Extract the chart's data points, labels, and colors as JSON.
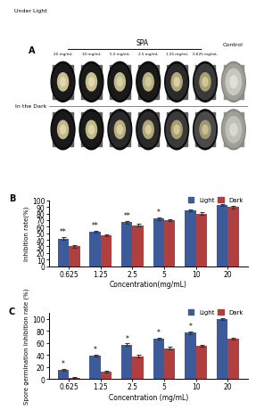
{
  "panel_B": {
    "concentrations": [
      "0.625",
      "1.25",
      "2.5",
      "5",
      "10",
      "20"
    ],
    "light_values": [
      42,
      52,
      67,
      72,
      85,
      93
    ],
    "dark_values": [
      30,
      47,
      62,
      70,
      80,
      90
    ],
    "light_err": [
      2.0,
      1.5,
      2.0,
      1.5,
      1.5,
      1.5
    ],
    "dark_err": [
      1.5,
      1.5,
      2.0,
      1.5,
      1.5,
      2.0
    ],
    "ylabel": "Inhibition rate(%)",
    "xlabel": "Concentration(mg/mL)",
    "ylim": [
      0,
      100
    ],
    "yticks": [
      0,
      10,
      20,
      30,
      40,
      50,
      60,
      70,
      80,
      90,
      100
    ],
    "significance_light": [
      "**",
      "**",
      "**",
      "*",
      "*",
      ""
    ],
    "label": "B"
  },
  "panel_C": {
    "concentrations": [
      "0.625",
      "1.25",
      "2.5",
      "5",
      "10",
      "20"
    ],
    "light_values": [
      15,
      39,
      57,
      67,
      77,
      100
    ],
    "dark_values": [
      2,
      12,
      38,
      51,
      55,
      67
    ],
    "light_err": [
      1.5,
      1.5,
      2.0,
      2.0,
      2.0,
      1.0
    ],
    "dark_err": [
      0.8,
      1.5,
      2.0,
      2.0,
      2.0,
      2.0
    ],
    "ylabel": "Spore germination Inhibition rate (%)",
    "xlabel": "Concentration (mg/mL)",
    "ylim": [
      0,
      110
    ],
    "yticks": [
      0,
      20,
      40,
      60,
      80,
      100
    ],
    "significance_light": [
      "*",
      "*",
      "*",
      "*",
      "*",
      "**"
    ],
    "label": "C"
  },
  "light_color": "#3D5A99",
  "dark_color": "#B04040",
  "bar_width": 0.35,
  "legend_labels": [
    "Light",
    "Dark"
  ],
  "bg_color": "#ffffff",
  "panel_A_label": "A",
  "spa_label": "SPA",
  "control_label": "Control",
  "under_light_label": "Under Light",
  "in_dark_label": "In the Dark",
  "conc_labels": [
    "20 mg/mL",
    "10 mg/mL",
    "5.0 mg/mL",
    "2.5 mg/mL",
    "1.25 mg/mL",
    "0.625 mg/mL"
  ],
  "dish_colors_light": [
    {
      "outer": "#0a0a0a",
      "mid": "#1a1a1a",
      "inner_ring": "#c8c090",
      "center": "#e0d8b0"
    },
    {
      "outer": "#0a0a0a",
      "mid": "#1a1a1a",
      "inner_ring": "#c8c090",
      "center": "#e0d8b0"
    },
    {
      "outer": "#0a0a0a",
      "mid": "#1a1a1a",
      "inner_ring": "#c0b888",
      "center": "#d8d0a8"
    },
    {
      "outer": "#0a0a0a",
      "mid": "#1a1a1a",
      "inner_ring": "#b8b080",
      "center": "#d0c8a0"
    },
    {
      "outer": "#0a0a0a",
      "mid": "#2a2a2a",
      "inner_ring": "#b0a878",
      "center": "#d8d0a8"
    },
    {
      "outer": "#0a0a0a",
      "mid": "#3a3a3a",
      "inner_ring": "#a8a070",
      "center": "#d0c898"
    }
  ],
  "dish_colors_dark": [
    {
      "outer": "#0a0a0a",
      "mid": "#1a1a1a",
      "inner_ring": "#c0b888",
      "center": "#ddd5a5"
    },
    {
      "outer": "#0a0a0a",
      "mid": "#1a1a1a",
      "inner_ring": "#c0b888",
      "center": "#ddd5a5"
    },
    {
      "outer": "#0a0a0a",
      "mid": "#2a2a2a",
      "inner_ring": "#b8b080",
      "center": "#d8d0a0"
    },
    {
      "outer": "#0a0a0a",
      "mid": "#2a2a2a",
      "inner_ring": "#b0a878",
      "center": "#d5cda0"
    },
    {
      "outer": "#0a0a0a",
      "mid": "#3a3a3a",
      "inner_ring": "#a8a070",
      "center": "#d0c898"
    },
    {
      "outer": "#0a0a0a",
      "mid": "#4a4a4a",
      "inner_ring": "#a09870",
      "center": "#ccc090"
    }
  ],
  "control_light": {
    "outer": "#888880",
    "mid": "#a0a098",
    "inner_ring": "#c8c8c0",
    "center": "#e0e0d8"
  },
  "control_dark": {
    "outer": "#888880",
    "mid": "#a0a098",
    "inner_ring": "#c0c0b8",
    "center": "#d8d8d0"
  }
}
